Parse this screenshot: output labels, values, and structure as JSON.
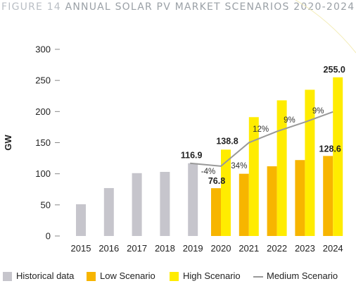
{
  "figure": {
    "number_label": "FIGURE 14",
    "title": "ANNUAL SOLAR PV MARKET SCENARIOS 2020-2024"
  },
  "colors": {
    "historical": "#c6c5cc",
    "low": "#f7b500",
    "high": "#ffec00",
    "medium": "#999999",
    "axis_text": "#222222",
    "title_number": "#b9bec4",
    "title_text": "#9aa0a6"
  },
  "legend": {
    "historical": "Historical data",
    "low": "Low Scenario",
    "high": "High Scenario",
    "medium": "Medium Scenario"
  },
  "chart_data": {
    "type": "bar",
    "ylabel": "GW",
    "ylim": [
      0,
      300
    ],
    "yticks": [
      "0",
      "50",
      "100",
      "150",
      "200",
      "250",
      "300"
    ],
    "categories": [
      "2015",
      "2016",
      "2017",
      "2018",
      "2019",
      "2020",
      "2021",
      "2022",
      "2023",
      "2024"
    ],
    "grid": false,
    "legend_position": "bottom",
    "series": [
      {
        "name": "Historical data",
        "kind": "bar",
        "values": [
          51,
          77,
          101,
          103,
          116.9,
          null,
          null,
          null,
          null,
          null
        ]
      },
      {
        "name": "Low Scenario",
        "kind": "bar",
        "values": [
          null,
          null,
          null,
          null,
          null,
          76.8,
          100,
          112,
          122,
          128.6
        ]
      },
      {
        "name": "High Scenario",
        "kind": "bar",
        "values": [
          null,
          null,
          null,
          null,
          null,
          138.8,
          191,
          218,
          235,
          255.0
        ]
      },
      {
        "name": "Medium Scenario",
        "kind": "line",
        "values": [
          null,
          null,
          null,
          null,
          116.9,
          112.2,
          150.0,
          168.0,
          183.0,
          199.5
        ]
      }
    ],
    "bar_labels": [
      {
        "category": "2019",
        "text": "116.9"
      },
      {
        "category": "2020",
        "text": "138.8"
      },
      {
        "category": "2020",
        "text": "76.8"
      },
      {
        "category": "2024",
        "text": "128.6"
      },
      {
        "category": "2024",
        "text": "255.0"
      }
    ],
    "growth_labels": [
      {
        "category": "2020",
        "text": "-4%"
      },
      {
        "category": "2021",
        "text": "34%"
      },
      {
        "category": "2022",
        "text": "12%"
      },
      {
        "category": "2023",
        "text": "9%"
      },
      {
        "category": "2024",
        "text": "9%"
      }
    ]
  }
}
